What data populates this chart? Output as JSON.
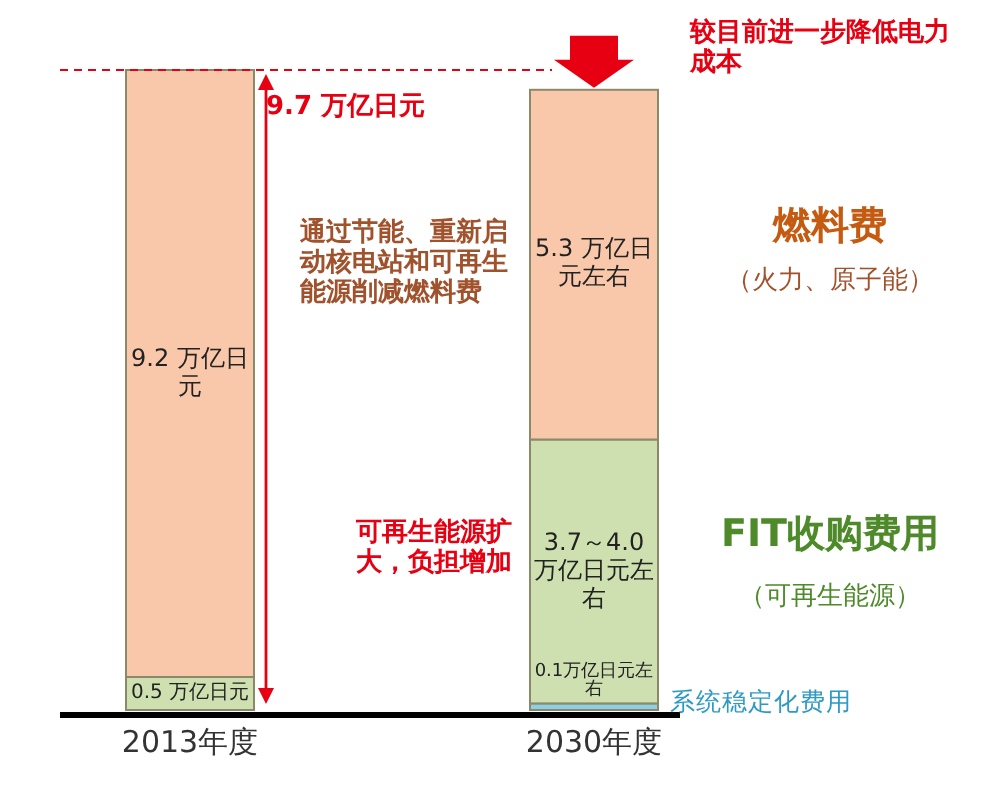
{
  "chart_data": {
    "type": "bar",
    "stacked": true,
    "categories": [
      "2013年度",
      "2030年度"
    ],
    "series": [
      {
        "name": "系统稳定化费用",
        "color": "#8ecfe6",
        "values": [
          null,
          0.1
        ],
        "value_labels": [
          null,
          "0.1万亿日元左右"
        ]
      },
      {
        "name": "FIT收购费用",
        "color": "#cfe0b0",
        "values": [
          0.5,
          4.0
        ],
        "value_labels": [
          "0.5 万亿日元",
          "3.7～4.0 万亿日元左右"
        ]
      },
      {
        "name": "燃料费",
        "color": "#f9c8aa",
        "values": [
          9.2,
          5.3
        ],
        "value_labels": [
          "9.2 万亿日元",
          "5.3 万亿日元左右"
        ]
      }
    ],
    "totals": [
      "9.7 万亿日元",
      null
    ],
    "ref_lines": [
      {
        "axis": "y",
        "value": 9.7,
        "color": "#e60012",
        "line_style": "dashed"
      }
    ],
    "annotations": [
      "较目前进一步降低电力成本",
      "通过节能、重新启动核电站和可再生能源削减燃料费",
      "可再生能源扩大，负担增加",
      "（火力、原子能）",
      "（可再生能源）"
    ],
    "legend": false
  }
}
